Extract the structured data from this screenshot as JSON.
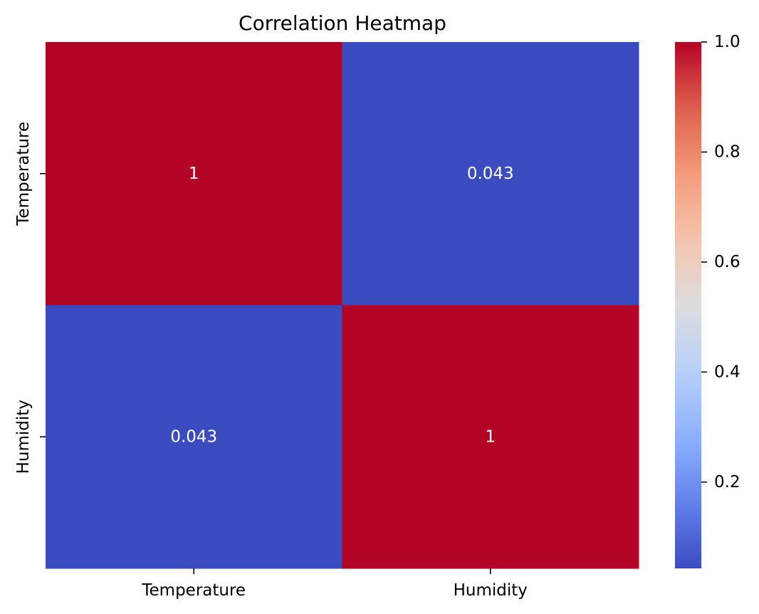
{
  "chart_data": {
    "type": "heatmap",
    "title": "Correlation Heatmap",
    "xlabel": "",
    "ylabel": "",
    "x_categories": [
      "Temperature",
      "Humidity"
    ],
    "y_categories": [
      "Temperature",
      "Humidity"
    ],
    "values": [
      [
        1.0,
        0.043
      ],
      [
        0.043,
        1.0
      ]
    ],
    "annotations": [
      [
        "1",
        "0.043"
      ],
      [
        "0.043",
        "1"
      ]
    ],
    "colormap": "coolwarm",
    "colorbar": {
      "range": [
        0.043,
        1.0
      ],
      "ticks": [
        0.2,
        0.4,
        0.6,
        0.8,
        1.0
      ],
      "tick_labels": [
        "0.2",
        "0.4",
        "0.6",
        "0.8",
        "1.0"
      ]
    },
    "colors": {
      "low": "#3b4cc0",
      "mid": "#dddddd",
      "high": "#b40426"
    }
  }
}
